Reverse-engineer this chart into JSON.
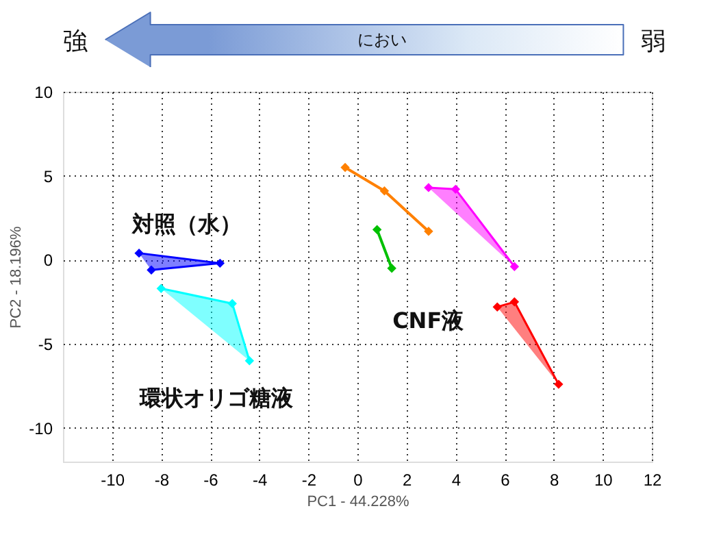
{
  "chart_data": {
    "type": "scatter",
    "xlabel": "PC1 - 44.228%",
    "ylabel": "PC2 - 18.196%",
    "xlim": [
      -12,
      12
    ],
    "ylim": [
      -12,
      10
    ],
    "xticks": [
      -10,
      -8,
      -6,
      -4,
      -2,
      0,
      2,
      4,
      6,
      8,
      10,
      12
    ],
    "yticks": [
      -10,
      -5,
      0,
      5,
      10
    ],
    "grid": true,
    "legend": false,
    "marker": "diamond",
    "line_style": "solid",
    "series": [
      {
        "type": "area",
        "color": "#0000ff",
        "x": [
          -8.9,
          -5.6,
          -8.4
        ],
        "values": [
          0.4,
          -0.2,
          -0.6
        ]
      },
      {
        "type": "area",
        "color": "#00ffff",
        "x": [
          -8.0,
          -5.1,
          -4.4
        ],
        "values": [
          -1.7,
          -2.6,
          -6.0
        ]
      },
      {
        "type": "line",
        "color": "#ff8000",
        "x": [
          -0.5,
          1.1,
          2.9
        ],
        "values": [
          5.5,
          4.1,
          1.7
        ]
      },
      {
        "type": "line",
        "color": "#00c000",
        "x": [
          0.8,
          1.4
        ],
        "values": [
          1.8,
          -0.5
        ]
      },
      {
        "type": "area",
        "color": "#ff00ff",
        "x": [
          2.9,
          4.0,
          6.4
        ],
        "values": [
          4.3,
          4.2,
          -0.4
        ]
      },
      {
        "type": "area",
        "color": "#ff0000",
        "x": [
          5.7,
          6.4,
          8.2
        ],
        "values": [
          -2.8,
          -2.5,
          -7.4
        ]
      }
    ],
    "annotations": [
      "強",
      "におい",
      "弱",
      "対照（水）",
      "環状オリゴ糖液",
      "CNF液"
    ]
  }
}
